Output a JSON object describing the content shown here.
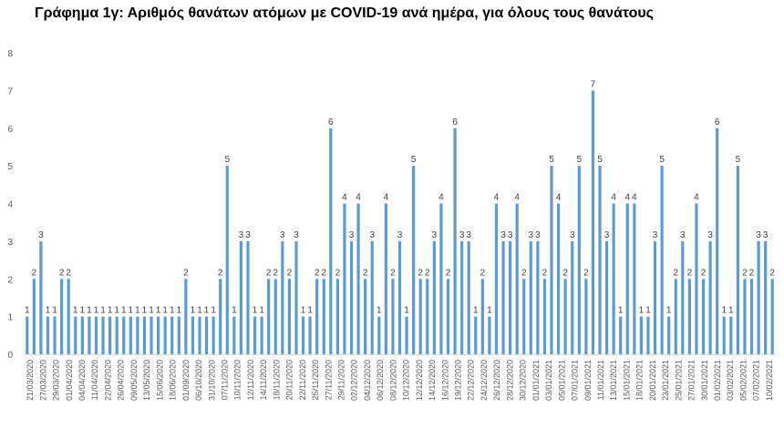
{
  "chart_data": {
    "type": "bar",
    "title": "Γράφημα 1γ: Αριθμός θανάτων ατόμων με COVID-19 ανά ημέρα, για όλους τους θανάτους",
    "xlabel": "",
    "ylabel": "",
    "ylim": [
      0,
      8
    ],
    "yticks": [
      0,
      1,
      2,
      3,
      4,
      5,
      6,
      7,
      8
    ],
    "grid": false,
    "legend": "none",
    "bar_color": "#5B9BD5",
    "data_labels": true,
    "x_tick_labels": [
      "21/03/2020",
      "27/03/2020",
      "29/03/2020",
      "01/04/2020",
      "04/04/2020",
      "11/04/2020",
      "22/04/2020",
      "26/04/2020",
      "09/05/2020",
      "13/05/2020",
      "15/06/2020",
      "18/06/2020",
      "01/09/2020",
      "06/10/2020",
      "31/10/2020",
      "07/11/2020",
      "10/11/2020",
      "12/11/2020",
      "14/11/2020",
      "18/11/2020",
      "20/11/2020",
      "22/11/2020",
      "25/11/2020",
      "27/11/2020",
      "29/11/2020",
      "02/12/2020",
      "04/12/2020",
      "06/12/2020",
      "08/12/2020",
      "10/12/2020",
      "12/12/2020",
      "14/12/2020",
      "16/12/2020",
      "19/12/2020",
      "22/12/2020",
      "24/12/2020",
      "26/12/2020",
      "28/12/2020",
      "30/12/2020",
      "01/01/2021",
      "03/01/2021",
      "05/01/2021",
      "07/01/2021",
      "09/01/2021",
      "11/01/2021",
      "13/01/2021",
      "15/01/2021",
      "18/01/2021",
      "20/01/2021",
      "23/01/2021",
      "25/01/2021",
      "27/01/2021",
      "30/01/2021",
      "01/02/2021",
      "03/02/2021",
      "05/02/2021",
      "07/02/2021",
      "10/02/2021"
    ],
    "values": [
      1,
      2,
      3,
      1,
      1,
      2,
      2,
      1,
      1,
      1,
      1,
      1,
      1,
      1,
      1,
      1,
      1,
      1,
      1,
      1,
      1,
      1,
      1,
      2,
      1,
      1,
      1,
      1,
      2,
      5,
      1,
      3,
      3,
      1,
      1,
      2,
      2,
      3,
      2,
      3,
      1,
      1,
      2,
      2,
      6,
      2,
      4,
      3,
      4,
      2,
      3,
      1,
      4,
      2,
      3,
      1,
      5,
      2,
      2,
      3,
      4,
      2,
      6,
      3,
      3,
      1,
      2,
      1,
      4,
      3,
      3,
      4,
      2,
      3,
      3,
      2,
      5,
      4,
      2,
      3,
      5,
      2,
      7,
      5,
      3,
      4,
      1,
      4,
      4,
      1,
      1,
      3,
      5,
      1,
      2,
      3,
      2,
      4,
      2,
      3,
      6,
      1,
      1,
      5,
      2,
      2,
      3,
      3,
      2
    ]
  }
}
